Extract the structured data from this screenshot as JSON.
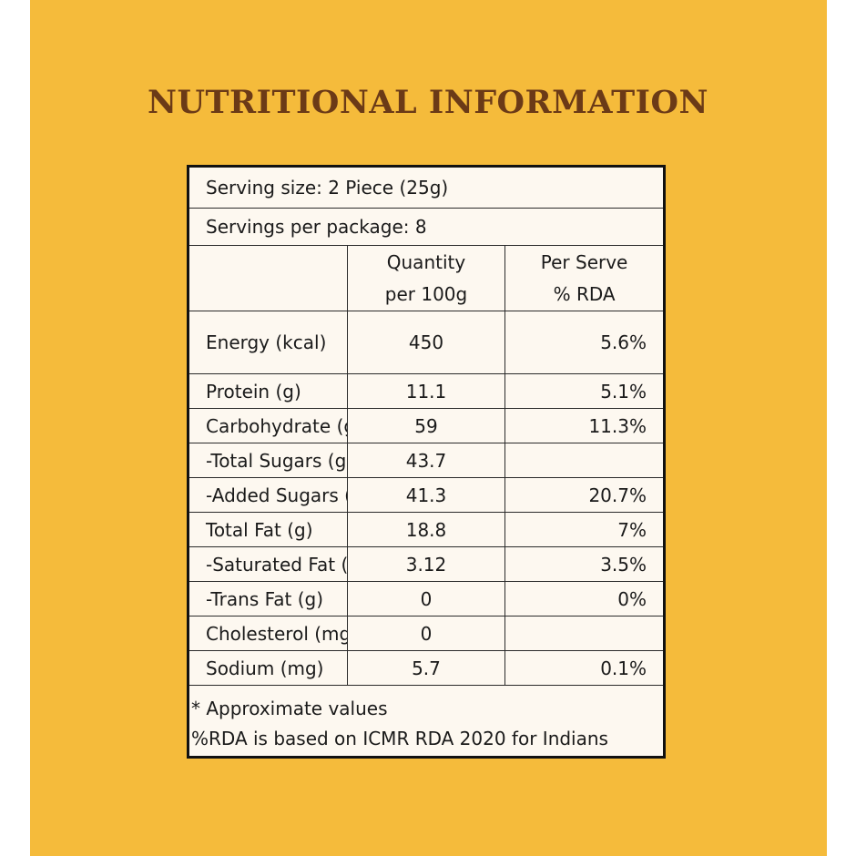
{
  "title": "NUTRITIONAL INFORMATION",
  "colors": {
    "background": "#f5bb3b",
    "title": "#6b3a17",
    "card": "#fdf8f0",
    "border": "#111111"
  },
  "serving_size": "Serving size: 2 Piece (25g)",
  "servings_per_package": "Servings per package: 8",
  "headers": {
    "quantity_line1": "Quantity",
    "quantity_line2": "per 100g",
    "rda_line1": "Per Serve",
    "rda_line2": "% RDA"
  },
  "rows": [
    {
      "nutrient": "Energy (kcal)",
      "quantity": "450",
      "rda": "5.6%"
    },
    {
      "nutrient": "Protein (g)",
      "quantity": "11.1",
      "rda": "5.1%"
    },
    {
      "nutrient": "Carbohydrate (g)",
      "quantity": "59",
      "rda": "11.3%"
    },
    {
      "nutrient": "-Total Sugars (g)",
      "quantity": "43.7",
      "rda": ""
    },
    {
      "nutrient": "-Added Sugars (g)",
      "quantity": "41.3",
      "rda": "20.7%"
    },
    {
      "nutrient": "Total Fat (g)",
      "quantity": "18.8",
      "rda": "7%"
    },
    {
      "nutrient": "-Saturated Fat (g)",
      "quantity": "3.12",
      "rda": "3.5%"
    },
    {
      "nutrient": "-Trans Fat (g)",
      "quantity": "0",
      "rda": "0%"
    },
    {
      "nutrient": "Cholesterol (mg)",
      "quantity": "0",
      "rda": ""
    },
    {
      "nutrient": "Sodium (mg)",
      "quantity": "5.7",
      "rda": "0.1%"
    }
  ],
  "notes": {
    "line1": "* Approximate values",
    "line2": "%RDA is based on ICMR RDA 2020 for Indians"
  }
}
